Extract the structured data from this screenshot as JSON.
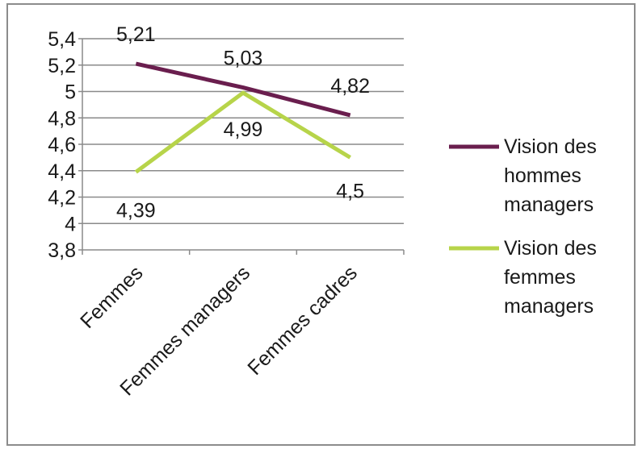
{
  "chart_data": {
    "type": "line",
    "title": "",
    "xlabel": "",
    "ylabel": "",
    "categories": [
      "Femmes",
      "Femmes managers",
      "Femmes cadres"
    ],
    "ylim": [
      3.8,
      5.4
    ],
    "ytick_labels": [
      "3,8",
      "4",
      "4,2",
      "4,4",
      "4,6",
      "4,8",
      "5",
      "5,2",
      "5,4"
    ],
    "grid": true,
    "legend_position": "right",
    "series": [
      {
        "name": "Vision des hommes managers",
        "legend_lines": [
          "Vision des",
          "hommes",
          "managers"
        ],
        "values": [
          5.21,
          5.03,
          4.82
        ],
        "labels": [
          "5,21",
          "5,03",
          "4,82"
        ],
        "color": "#6a1e4e"
      },
      {
        "name": "Vision des femmes managers",
        "legend_lines": [
          "Vision des",
          "femmes",
          "managers"
        ],
        "values": [
          4.39,
          4.99,
          4.5
        ],
        "labels": [
          "4,39",
          "4,99",
          "4,5"
        ],
        "color": "#b7d44a"
      }
    ]
  }
}
